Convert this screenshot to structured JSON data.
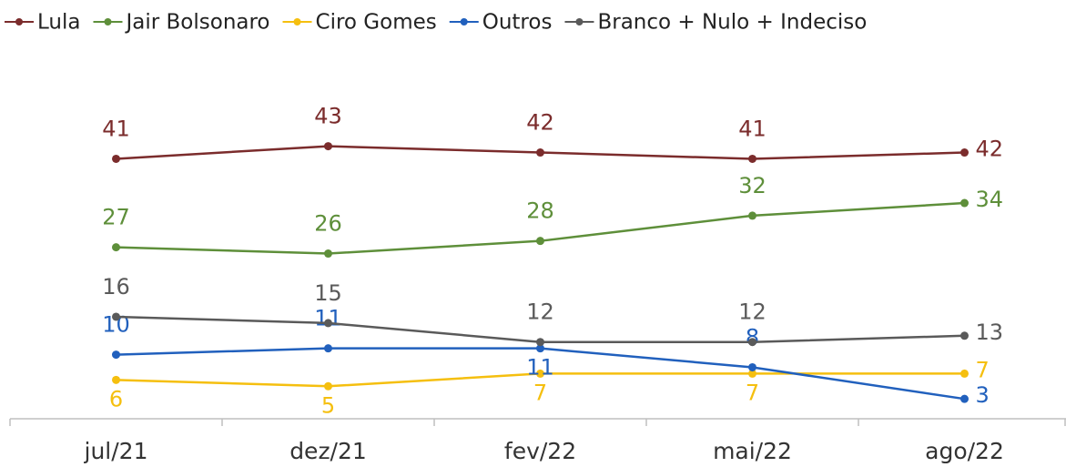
{
  "chart_data": {
    "type": "line",
    "categories": [
      "jul/21",
      "dez/21",
      "fev/22",
      "mai/22",
      "ago/22"
    ],
    "series": [
      {
        "name": "Lula",
        "color": "#7b2c2c",
        "values": [
          41,
          43,
          42,
          41,
          42
        ]
      },
      {
        "name": "Jair Bolsonaro",
        "color": "#5e8f3a",
        "values": [
          27,
          26,
          28,
          32,
          34
        ]
      },
      {
        "name": "Ciro Gomes",
        "color": "#f5bf0f",
        "values": [
          6,
          5,
          7,
          7,
          7
        ]
      },
      {
        "name": "Outros",
        "color": "#2160bd",
        "values": [
          10,
          11,
          11,
          8,
          3
        ]
      },
      {
        "name": "Branco + Nulo + Indeciso",
        "color": "#5a5a5a",
        "values": [
          16,
          15,
          12,
          12,
          13
        ]
      }
    ],
    "ylim": [
      0,
      50
    ],
    "legend": "top"
  }
}
